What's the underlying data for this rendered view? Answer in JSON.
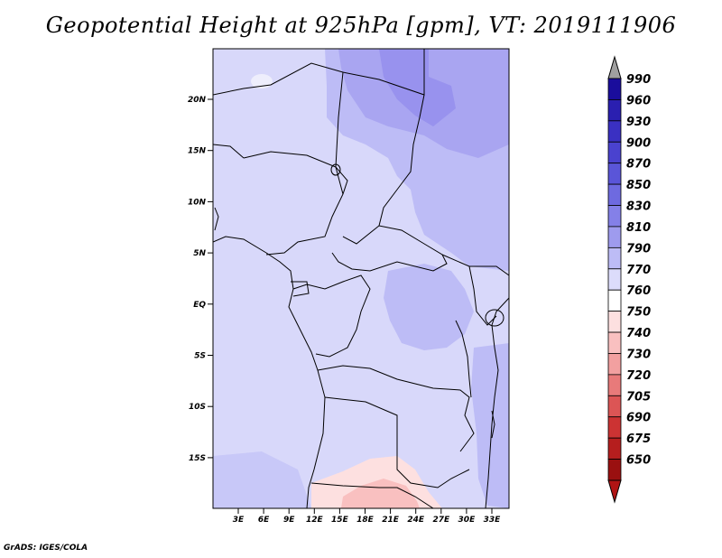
{
  "title": "Geopotential Height at 925hPa [gpm], VT: 2019111906",
  "credit": "GrADS: IGES/COLA",
  "map": {
    "lat_labels": [
      "20N",
      "15N",
      "10N",
      "5N",
      "EQ",
      "5S",
      "10S",
      "15S"
    ],
    "lon_labels": [
      "3E",
      "6E",
      "9E",
      "12E",
      "15E",
      "18E",
      "21E",
      "24E",
      "27E",
      "30E",
      "33E"
    ]
  },
  "colorbar": {
    "levels": [
      "990",
      "960",
      "930",
      "900",
      "870",
      "850",
      "830",
      "810",
      "790",
      "770",
      "760",
      "750",
      "740",
      "730",
      "720",
      "705",
      "690",
      "675",
      "650"
    ],
    "colors": [
      "#1a0d9c",
      "#2a1fb0",
      "#3a30c2",
      "#4a42cf",
      "#5a55d8",
      "#6e6ae0",
      "#8480e8",
      "#9e9bee",
      "#bdbcf6",
      "#dcdcfb",
      "#ffffff",
      "#fde0e0",
      "#f9c0c0",
      "#f2a0a0",
      "#e87a7a",
      "#dc5555",
      "#cc3333",
      "#b51e1e",
      "#9a1010"
    ],
    "top_arrow_color": "#a0a0a0",
    "bottom_arrow_color": "#b01414"
  },
  "field_colors": {
    "base": "#d8d8fa",
    "medium": "#bdbcf6",
    "dark": "#a9a5f1",
    "darker": "#9892ee",
    "pink": "#fde0e0",
    "pink_dark": "#f9c0c0"
  }
}
